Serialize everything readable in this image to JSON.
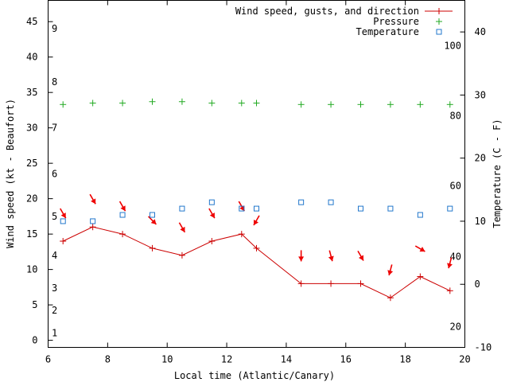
{
  "chart_data": {
    "type": "line",
    "xlabel": "Local time (Atlantic/Canary)",
    "ylabel": "Wind speed (kt - Beaufort)",
    "y2label": "Temperature (C - F)",
    "xlim": [
      6,
      20
    ],
    "ylim": [
      -1,
      48
    ],
    "y2lim": [
      -10,
      45
    ],
    "x_ticks": [
      "6",
      "8",
      "10",
      "12",
      "14",
      "16",
      "18",
      "20"
    ],
    "y_ticks": [
      "0",
      "5",
      "10",
      "15",
      "20",
      "25",
      "30",
      "35",
      "40",
      "45"
    ],
    "y2_ticks": [
      "-10",
      "0",
      "10",
      "20",
      "30",
      "40"
    ],
    "beaufort_labels": [
      {
        "label": "1",
        "kt": 1
      },
      {
        "label": "2",
        "kt": 4.2
      },
      {
        "label": "3",
        "kt": 7.4
      },
      {
        "label": "4",
        "kt": 12
      },
      {
        "label": "5",
        "kt": 17.5
      },
      {
        "label": "6",
        "kt": 23.5
      },
      {
        "label": "7",
        "kt": 30
      },
      {
        "label": "8",
        "kt": 36.5
      },
      {
        "label": "9",
        "kt": 44
      }
    ],
    "fahrenheit_labels": [
      {
        "label": "20",
        "c": -6.7
      },
      {
        "label": "40",
        "c": 4.4
      },
      {
        "label": "60",
        "c": 15.6
      },
      {
        "label": "80",
        "c": 26.7
      },
      {
        "label": "100",
        "c": 37.8
      }
    ],
    "grid": false,
    "legend_position": "top-right",
    "colors": {
      "wind": "#cc0000",
      "pressure": "#22aa22",
      "temperature": "#2277cc",
      "direction": "#ee0000"
    },
    "series": [
      {
        "name": "Wind speed, gusts, and direction",
        "x": [
          6.5,
          7.5,
          8.5,
          9.5,
          10.5,
          11.5,
          12.5,
          13.0,
          14.5,
          15.5,
          16.5,
          17.5,
          18.5,
          19.5
        ],
        "values": [
          14,
          16,
          15,
          13,
          12,
          14,
          15,
          13,
          8,
          8,
          8,
          6,
          9,
          7
        ],
        "direction_deg": [
          330,
          330,
          330,
          315,
          330,
          330,
          330,
          30,
          0,
          345,
          330,
          15,
          300,
          15
        ]
      },
      {
        "name": "Pressure",
        "x": [
          6.5,
          7.5,
          8.5,
          9.5,
          10.5,
          11.5,
          12.5,
          13.0,
          14.5,
          15.5,
          16.5,
          17.5,
          18.5,
          19.5
        ],
        "values": [
          33.3,
          33.5,
          33.5,
          33.7,
          33.7,
          33.5,
          33.5,
          33.5,
          33.3,
          33.3,
          33.3,
          33.3,
          33.3,
          33.3
        ]
      },
      {
        "name": "Temperature",
        "x": [
          6.5,
          7.5,
          8.5,
          9.5,
          10.5,
          11.5,
          12.5,
          13.0,
          14.5,
          15.5,
          16.5,
          17.5,
          18.5,
          19.5
        ],
        "values": [
          10,
          10,
          11,
          11,
          12,
          13,
          12,
          12,
          13,
          13,
          12,
          12,
          11,
          12
        ]
      }
    ]
  }
}
